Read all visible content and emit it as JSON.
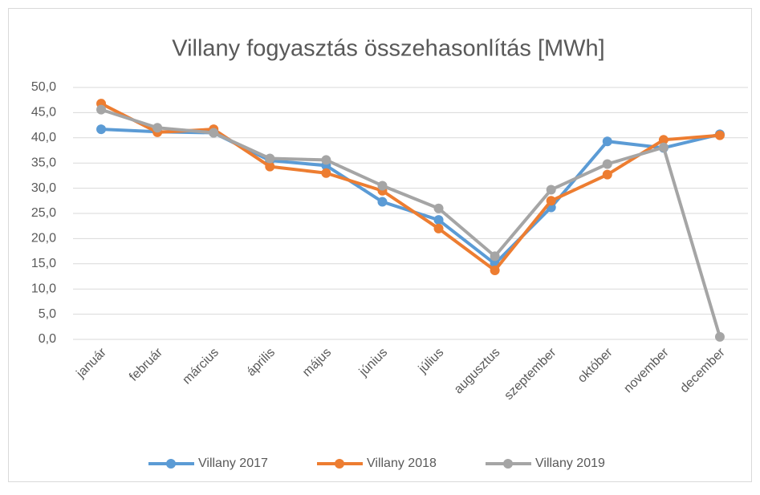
{
  "chart_data": {
    "type": "line",
    "title": "Villany fogyasztás összehasonlítás [MWh]",
    "categories": [
      "január",
      "február",
      "március",
      "április",
      "május",
      "június",
      "július",
      "augusztus",
      "szeptember",
      "október",
      "november",
      "december"
    ],
    "series": [
      {
        "name": "Villany 2017",
        "color": "#5b9bd5",
        "values": [
          41.7,
          41.2,
          41.0,
          35.5,
          34.5,
          27.3,
          23.7,
          15.0,
          26.2,
          39.3,
          38.0,
          40.7
        ]
      },
      {
        "name": "Villany 2018",
        "color": "#ed7d31",
        "values": [
          46.8,
          41.1,
          41.7,
          34.3,
          33.0,
          29.5,
          22.0,
          13.7,
          27.5,
          32.7,
          39.6,
          40.5
        ]
      },
      {
        "name": "Villany 2019",
        "color": "#a5a5a5",
        "values": [
          45.6,
          42.0,
          41.0,
          35.9,
          35.6,
          30.5,
          26.0,
          16.5,
          29.7,
          34.8,
          38.1,
          0.5
        ]
      }
    ],
    "ylim": [
      0,
      50
    ],
    "yticks": [
      {
        "value": 0,
        "label": "0,0"
      },
      {
        "value": 5,
        "label": "5,0"
      },
      {
        "value": 10,
        "label": "10,0"
      },
      {
        "value": 15,
        "label": "15,0"
      },
      {
        "value": 20,
        "label": "20,0"
      },
      {
        "value": 25,
        "label": "25,0"
      },
      {
        "value": 30,
        "label": "30,0"
      },
      {
        "value": 35,
        "label": "35,0"
      },
      {
        "value": 40,
        "label": "40,0"
      },
      {
        "value": 45,
        "label": "45,0"
      },
      {
        "value": 50,
        "label": "50,0"
      }
    ],
    "grid": true,
    "legend": "bottom"
  }
}
